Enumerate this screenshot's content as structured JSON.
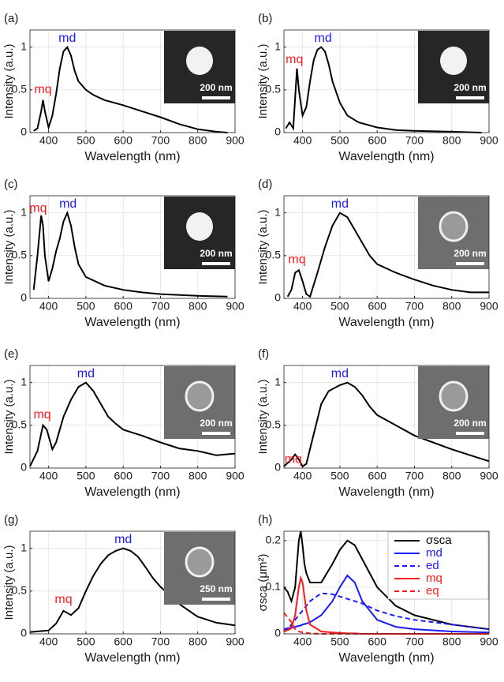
{
  "chart_data": [
    {
      "type": "line",
      "panel_label": "(a)",
      "xlabel": "Wavelength (nm)",
      "ylabel": "Intensity (a.u.)",
      "xlim": [
        350,
        900
      ],
      "ylim": [
        0,
        1.2
      ],
      "xticks": [
        400,
        500,
        600,
        700,
        800,
        900
      ],
      "yticks": [
        0,
        0.5,
        1
      ],
      "grid": true,
      "color": "#000000",
      "x": [
        360,
        370,
        380,
        385,
        390,
        400,
        410,
        420,
        430,
        440,
        450,
        460,
        470,
        480,
        500,
        520,
        550,
        600,
        650,
        700,
        750,
        800,
        850,
        880
      ],
      "values": [
        0.02,
        0.05,
        0.25,
        0.38,
        0.25,
        0.06,
        0.2,
        0.45,
        0.75,
        0.95,
        1.0,
        0.9,
        0.72,
        0.6,
        0.5,
        0.44,
        0.38,
        0.32,
        0.25,
        0.18,
        0.1,
        0.04,
        0.01,
        0
      ],
      "annotations": [
        {
          "text": "mq",
          "x": 385,
          "y": 0.5,
          "color": "#ff1a1a"
        },
        {
          "text": "md",
          "x": 450,
          "y": 1.1,
          "color": "#1a1aff"
        }
      ],
      "inset_label": "200 nm",
      "inset_color": "#262626"
    },
    {
      "type": "line",
      "panel_label": "(b)",
      "xlabel": "Wavelength (nm)",
      "ylabel": "Intensity (a.u.)",
      "xlim": [
        350,
        900
      ],
      "ylim": [
        0,
        1.2
      ],
      "xticks": [
        400,
        500,
        600,
        700,
        800,
        900
      ],
      "yticks": [
        0,
        0.5,
        1
      ],
      "grid": true,
      "color": "#000000",
      "x": [
        355,
        365,
        375,
        385,
        390,
        400,
        410,
        420,
        430,
        440,
        450,
        460,
        470,
        480,
        500,
        520,
        550,
        600,
        650,
        700,
        800,
        880
      ],
      "values": [
        0.05,
        0.12,
        0.05,
        0.75,
        0.5,
        0.2,
        0.3,
        0.6,
        0.85,
        0.97,
        1.0,
        0.95,
        0.8,
        0.6,
        0.35,
        0.2,
        0.12,
        0.06,
        0.03,
        0.02,
        0.01,
        0
      ],
      "annotations": [
        {
          "text": "mq",
          "x": 378,
          "y": 0.85,
          "color": "#ff1a1a"
        },
        {
          "text": "md",
          "x": 455,
          "y": 1.1,
          "color": "#1a1aff"
        }
      ],
      "inset_label": "200 nm",
      "inset_color": "#262626"
    },
    {
      "type": "line",
      "panel_label": "(c)",
      "xlabel": "Wavelength (nm)",
      "ylabel": "Intensity (a.u.)",
      "xlim": [
        350,
        900
      ],
      "ylim": [
        0,
        1.2
      ],
      "xticks": [
        400,
        500,
        600,
        700,
        800,
        900
      ],
      "yticks": [
        0,
        0.5,
        1
      ],
      "grid": true,
      "color": "#000000",
      "x": [
        360,
        370,
        380,
        385,
        390,
        400,
        410,
        420,
        430,
        440,
        450,
        460,
        470,
        480,
        500,
        550,
        600,
        650,
        700,
        800,
        880
      ],
      "values": [
        0.1,
        0.5,
        0.97,
        0.85,
        0.5,
        0.2,
        0.35,
        0.55,
        0.7,
        0.9,
        1.0,
        0.85,
        0.6,
        0.4,
        0.25,
        0.15,
        0.1,
        0.07,
        0.05,
        0.03,
        0.02
      ],
      "annotations": [
        {
          "text": "mq",
          "x": 372,
          "y": 1.05,
          "color": "#ff1a1a"
        },
        {
          "text": "md",
          "x": 452,
          "y": 1.1,
          "color": "#1a1aff"
        }
      ],
      "inset_label": "200 nm",
      "inset_color": "#262626"
    },
    {
      "type": "line",
      "panel_label": "(d)",
      "xlabel": "Wavelength (nm)",
      "ylabel": "Intensity (a.u.)",
      "xlim": [
        350,
        900
      ],
      "ylim": [
        0,
        1.2
      ],
      "xticks": [
        400,
        500,
        600,
        700,
        800,
        900
      ],
      "yticks": [
        0,
        0.5,
        1
      ],
      "grid": true,
      "color": "#000000",
      "x": [
        360,
        370,
        380,
        390,
        400,
        410,
        420,
        440,
        460,
        480,
        500,
        520,
        540,
        560,
        580,
        600,
        650,
        700,
        750,
        800,
        850,
        900
      ],
      "values": [
        0.02,
        0.1,
        0.3,
        0.33,
        0.2,
        0.05,
        0.02,
        0.3,
        0.6,
        0.85,
        1.0,
        0.95,
        0.8,
        0.65,
        0.5,
        0.4,
        0.3,
        0.22,
        0.15,
        0.1,
        0.07,
        0.07
      ],
      "annotations": [
        {
          "text": "mq",
          "x": 385,
          "y": 0.45,
          "color": "#ff1a1a"
        },
        {
          "text": "md",
          "x": 500,
          "y": 1.1,
          "color": "#1a1aff"
        }
      ],
      "inset_label": "200 nm",
      "inset_color": "#6e6e6e"
    },
    {
      "type": "line",
      "panel_label": "(e)",
      "xlabel": "Wavelength (nm)",
      "ylabel": "Intensity (a.u.)",
      "xlim": [
        350,
        900
      ],
      "ylim": [
        0,
        1.2
      ],
      "xticks": [
        400,
        500,
        600,
        700,
        800,
        900
      ],
      "yticks": [
        0,
        0.5,
        1
      ],
      "grid": true,
      "color": "#000000",
      "x": [
        350,
        370,
        385,
        395,
        410,
        420,
        440,
        460,
        480,
        500,
        520,
        540,
        560,
        580,
        600,
        650,
        700,
        750,
        800,
        850,
        900
      ],
      "values": [
        0.02,
        0.2,
        0.5,
        0.45,
        0.22,
        0.3,
        0.6,
        0.8,
        0.95,
        1.0,
        0.9,
        0.75,
        0.6,
        0.52,
        0.45,
        0.38,
        0.3,
        0.23,
        0.2,
        0.15,
        0.17
      ],
      "annotations": [
        {
          "text": "mq",
          "x": 383,
          "y": 0.62,
          "color": "#ff1a1a"
        },
        {
          "text": "md",
          "x": 500,
          "y": 1.1,
          "color": "#1a1aff"
        }
      ],
      "inset_label": "200 nm",
      "inset_color": "#6e6e6e"
    },
    {
      "type": "line",
      "panel_label": "(f)",
      "xlabel": "Wavelength (nm)",
      "ylabel": "Intensity (a.u.)",
      "xlim": [
        350,
        900
      ],
      "ylim": [
        0,
        1.2
      ],
      "xticks": [
        400,
        500,
        600,
        700,
        800,
        900
      ],
      "yticks": [
        0,
        0.5,
        1
      ],
      "grid": true,
      "color": "#000000",
      "x": [
        350,
        370,
        380,
        390,
        400,
        410,
        430,
        450,
        470,
        500,
        520,
        540,
        560,
        580,
        600,
        650,
        700,
        750,
        800,
        850,
        900
      ],
      "values": [
        0.02,
        0.1,
        0.16,
        0.1,
        0.02,
        0.05,
        0.4,
        0.75,
        0.9,
        0.97,
        1.0,
        0.95,
        0.85,
        0.72,
        0.62,
        0.5,
        0.38,
        0.3,
        0.22,
        0.15,
        0.08
      ],
      "annotations": [
        {
          "text": "mq",
          "x": 375,
          "y": 0.1,
          "color": "#ff1a1a"
        },
        {
          "text": "md",
          "x": 500,
          "y": 1.1,
          "color": "#1a1aff"
        }
      ],
      "inset_label": "200 nm",
      "inset_color": "#6e6e6e"
    },
    {
      "type": "line",
      "panel_label": "(g)",
      "xlabel": "Wavelength (nm)",
      "ylabel": "Intensity (a.u.)",
      "xlim": [
        350,
        900
      ],
      "ylim": [
        0,
        1.2
      ],
      "xticks": [
        400,
        500,
        600,
        700,
        800,
        900
      ],
      "yticks": [
        0,
        0.5,
        1
      ],
      "grid": true,
      "color": "#000000",
      "x": [
        350,
        400,
        420,
        440,
        460,
        480,
        500,
        520,
        540,
        560,
        580,
        600,
        620,
        640,
        660,
        680,
        700,
        750,
        800,
        850,
        900
      ],
      "values": [
        0.02,
        0.04,
        0.12,
        0.27,
        0.22,
        0.3,
        0.5,
        0.68,
        0.82,
        0.92,
        0.97,
        1.0,
        0.97,
        0.9,
        0.78,
        0.65,
        0.55,
        0.35,
        0.2,
        0.13,
        0.1
      ],
      "annotations": [
        {
          "text": "mq",
          "x": 440,
          "y": 0.4,
          "color": "#ff1a1a"
        },
        {
          "text": "md",
          "x": 600,
          "y": 1.1,
          "color": "#1a1aff"
        }
      ],
      "inset_label": "250 nm",
      "inset_color": "#6e6e6e"
    },
    {
      "type": "multiline",
      "panel_label": "(h)",
      "xlabel": "Wavelength (nm)",
      "ylabel": "σsca (μm²)",
      "xlim": [
        350,
        900
      ],
      "ylim": [
        0,
        0.22
      ],
      "xticks": [
        400,
        500,
        600,
        700,
        800,
        900
      ],
      "yticks": [
        0,
        0.1,
        0.2
      ],
      "grid": true,
      "legend": "upper right",
      "x": [
        350,
        360,
        370,
        380,
        385,
        390,
        395,
        400,
        405,
        410,
        420,
        450,
        480,
        500,
        520,
        540,
        560,
        600,
        650,
        700,
        800,
        900
      ],
      "series": [
        {
          "name": "σsca",
          "color": "#000000",
          "linestyle": "solid",
          "values": [
            0.1,
            0.09,
            0.07,
            0.1,
            0.15,
            0.2,
            0.22,
            0.19,
            0.15,
            0.13,
            0.11,
            0.11,
            0.15,
            0.18,
            0.2,
            0.19,
            0.16,
            0.1,
            0.06,
            0.04,
            0.02,
            0.01
          ]
        },
        {
          "name": "md",
          "color": "#1a1aff",
          "linestyle": "solid",
          "values": [
            0.01,
            0.012,
            0.013,
            0.015,
            0.016,
            0.017,
            0.018,
            0.02,
            0.021,
            0.022,
            0.025,
            0.04,
            0.07,
            0.1,
            0.125,
            0.11,
            0.07,
            0.03,
            0.015,
            0.01,
            0.005,
            0.003
          ]
        },
        {
          "name": "ed",
          "color": "#1a1aff",
          "linestyle": "dashed",
          "values": [
            0.005,
            0.01,
            0.02,
            0.03,
            0.035,
            0.04,
            0.045,
            0.05,
            0.055,
            0.06,
            0.07,
            0.087,
            0.085,
            0.08,
            0.075,
            0.07,
            0.065,
            0.05,
            0.038,
            0.03,
            0.02,
            0.01
          ]
        },
        {
          "name": "mq",
          "color": "#ff1a1a",
          "linestyle": "solid",
          "values": [
            0.005,
            0.008,
            0.012,
            0.04,
            0.07,
            0.1,
            0.12,
            0.11,
            0.08,
            0.05,
            0.02,
            0.005,
            0.003,
            0.002,
            0.001,
            0.001,
            0,
            0,
            0,
            0,
            0,
            0
          ]
        },
        {
          "name": "eq",
          "color": "#ff1a1a",
          "linestyle": "dashed",
          "values": [
            0.045,
            0.035,
            0.025,
            0.01,
            0.007,
            0.005,
            0.004,
            0.003,
            0.002,
            0.002,
            0.001,
            0,
            0,
            0,
            0,
            0,
            0,
            0,
            0,
            0,
            0,
            0
          ]
        }
      ]
    }
  ]
}
